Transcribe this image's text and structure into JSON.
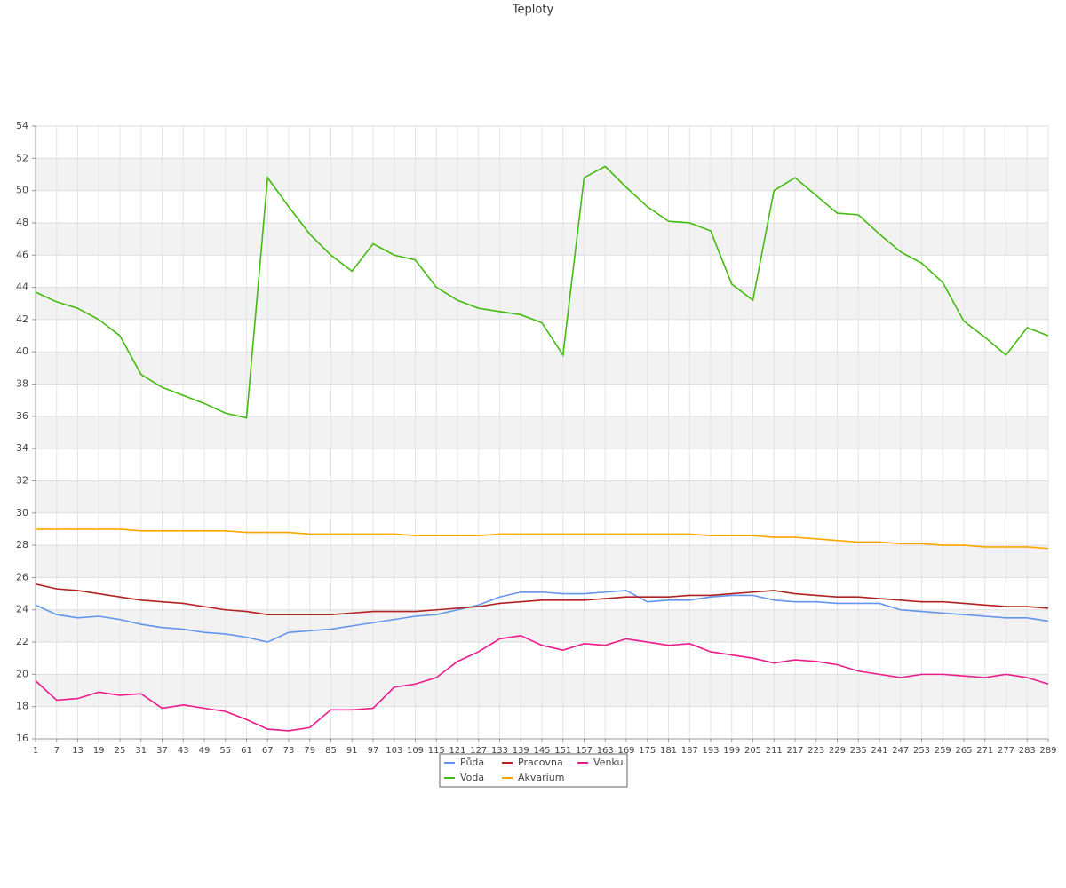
{
  "chart_data": {
    "type": "line",
    "title": "Teploty",
    "x": [
      1,
      7,
      13,
      19,
      25,
      31,
      37,
      43,
      49,
      55,
      61,
      67,
      73,
      79,
      85,
      91,
      97,
      103,
      109,
      115,
      121,
      127,
      133,
      139,
      145,
      151,
      157,
      163,
      169,
      175,
      181,
      187,
      193,
      199,
      205,
      211,
      217,
      223,
      229,
      235,
      241,
      247,
      253,
      259,
      265,
      271,
      277,
      283,
      289
    ],
    "xlim": [
      1,
      289
    ],
    "ylim": [
      16,
      54
    ],
    "yticks": [
      16,
      18,
      20,
      22,
      24,
      26,
      28,
      30,
      32,
      34,
      36,
      38,
      40,
      42,
      44,
      46,
      48,
      50,
      52,
      54
    ],
    "grid": true,
    "series": [
      {
        "name": "Půda",
        "color": "#6495ed",
        "values": [
          24.3,
          23.7,
          23.5,
          23.6,
          23.4,
          23.1,
          22.9,
          22.8,
          22.6,
          22.5,
          22.3,
          22.0,
          22.6,
          22.7,
          22.8,
          23.0,
          23.2,
          23.4,
          23.6,
          23.7,
          24.0,
          24.3,
          24.8,
          25.1,
          25.1,
          25.0,
          25.0,
          25.1,
          25.2,
          24.5,
          24.6,
          24.6,
          24.8,
          24.9,
          24.9,
          24.6,
          24.5,
          24.5,
          24.4,
          24.4,
          24.4,
          24.0,
          23.9,
          23.8,
          23.7,
          23.6,
          23.5,
          23.5,
          23.3
        ]
      },
      {
        "name": "Pracovna",
        "color": "#b22222",
        "values": [
          25.6,
          25.3,
          25.2,
          25.0,
          24.8,
          24.6,
          24.5,
          24.4,
          24.2,
          24.0,
          23.9,
          23.7,
          23.7,
          23.7,
          23.7,
          23.8,
          23.9,
          23.9,
          23.9,
          24.0,
          24.1,
          24.2,
          24.4,
          24.5,
          24.6,
          24.6,
          24.6,
          24.7,
          24.8,
          24.8,
          24.8,
          24.9,
          24.9,
          25.0,
          25.1,
          25.2,
          25.0,
          24.9,
          24.8,
          24.8,
          24.7,
          24.6,
          24.5,
          24.5,
          24.4,
          24.3,
          24.2,
          24.2,
          24.1
        ]
      },
      {
        "name": "Venku",
        "color": "#ec1b8c",
        "values": [
          19.6,
          18.4,
          18.5,
          18.9,
          18.7,
          18.8,
          17.9,
          18.1,
          17.9,
          17.7,
          17.2,
          16.6,
          16.5,
          16.7,
          17.8,
          17.8,
          17.9,
          19.2,
          19.4,
          19.8,
          20.8,
          21.4,
          22.2,
          22.4,
          21.8,
          21.5,
          21.9,
          21.8,
          22.2,
          22.0,
          21.8,
          21.9,
          21.4,
          21.2,
          21.0,
          20.7,
          20.9,
          20.8,
          20.6,
          20.2,
          20.0,
          19.8,
          20.0,
          20.0,
          19.9,
          19.8,
          20.0,
          19.8,
          19.4
        ]
      },
      {
        "name": "Voda",
        "color": "#44bb11",
        "values": [
          43.7,
          43.1,
          42.7,
          42.0,
          41.0,
          38.6,
          37.8,
          37.3,
          36.8,
          36.2,
          35.9,
          50.8,
          49.0,
          47.3,
          46.0,
          45.0,
          46.7,
          46.0,
          45.7,
          44.0,
          43.2,
          42.7,
          42.5,
          42.3,
          41.8,
          39.8,
          50.8,
          51.5,
          50.2,
          49.0,
          48.1,
          48.0,
          47.5,
          44.2,
          43.2,
          50.0,
          50.8,
          49.7,
          48.6,
          48.5,
          47.3,
          46.2,
          45.5,
          44.3,
          41.9,
          40.9,
          39.8,
          41.5,
          41.0
        ]
      },
      {
        "name": "Akvarium",
        "color": "#ffa500",
        "values": [
          29.0,
          29.0,
          29.0,
          29.0,
          29.0,
          28.9,
          28.9,
          28.9,
          28.9,
          28.9,
          28.8,
          28.8,
          28.8,
          28.7,
          28.7,
          28.7,
          28.7,
          28.7,
          28.6,
          28.6,
          28.6,
          28.6,
          28.7,
          28.7,
          28.7,
          28.7,
          28.7,
          28.7,
          28.7,
          28.7,
          28.7,
          28.7,
          28.6,
          28.6,
          28.6,
          28.5,
          28.5,
          28.4,
          28.3,
          28.2,
          28.2,
          28.1,
          28.1,
          28.0,
          28.0,
          27.9,
          27.9,
          27.9,
          27.8
        ]
      }
    ]
  }
}
